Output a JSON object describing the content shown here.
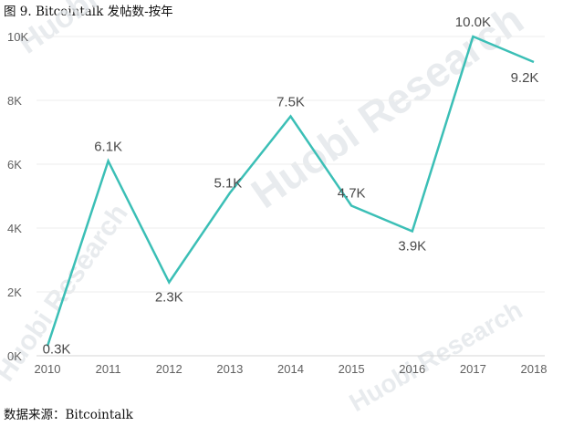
{
  "caption": "图 9. Bitcointalk 发帖数-按年",
  "source": "数据来源：Bitcointalk",
  "watermark": "Huobi Research",
  "chart_data": {
    "type": "line",
    "title": "图 9. Bitcointalk 发帖数-按年",
    "x": [
      2010,
      2011,
      2012,
      2013,
      2014,
      2015,
      2016,
      2017,
      2018
    ],
    "x_tick_labels": [
      "2010",
      "2011",
      "2012",
      "2013",
      "2014",
      "2015",
      "2016",
      "2017",
      "2018"
    ],
    "series": [
      {
        "values": [
          0.3,
          6.1,
          2.3,
          5.1,
          7.5,
          4.7,
          3.9,
          10.0,
          9.2
        ],
        "labels": [
          "0.3K",
          "6.1K",
          "2.3K",
          "5.1K",
          "7.5K",
          "4.7K",
          "3.9K",
          "10.0K",
          "9.2K"
        ],
        "color": "#3bbfb6"
      }
    ],
    "y_ticks": [
      0,
      2,
      4,
      6,
      8,
      10
    ],
    "y_tick_labels": [
      "0K",
      "2K",
      "4K",
      "6K",
      "8K",
      "10K"
    ],
    "ylim": [
      0,
      10
    ],
    "xlabel": "",
    "ylabel": "",
    "grid": true,
    "legend": "none"
  }
}
